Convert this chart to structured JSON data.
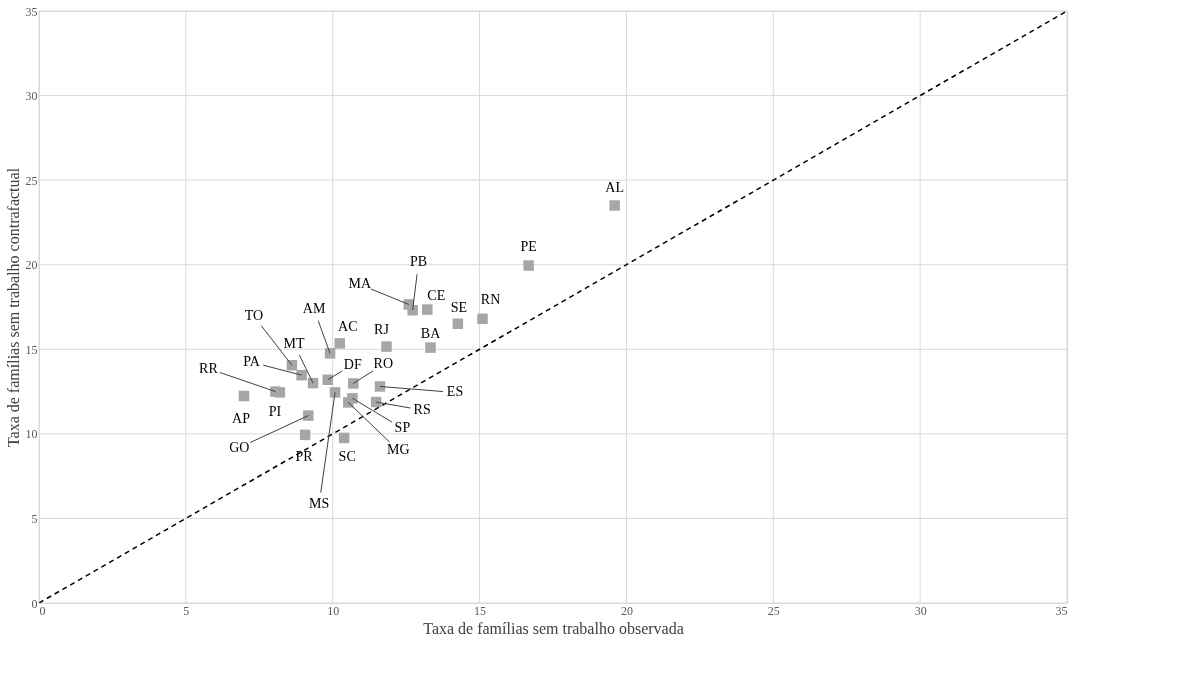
{
  "chart_data": {
    "type": "scatter",
    "xlabel": "Taxa de famílias sem trabalho observada",
    "ylabel": "Taxa de famílias sem trabalho contrafactual",
    "xlim": [
      0,
      35
    ],
    "ylim": [
      0,
      35
    ],
    "xticks": [
      0,
      5,
      10,
      15,
      20,
      25,
      30,
      35
    ],
    "yticks": [
      0,
      5,
      10,
      15,
      20,
      25,
      30,
      35
    ],
    "grid": true,
    "series": [
      {
        "marker": "square",
        "color": "#a6a6a6",
        "x": [
          12.59,
          12.72,
          13.22,
          14.26,
          15.1,
          13.33,
          11.83,
          10.24,
          9.91,
          8.61,
          8.94,
          9.33,
          9.83,
          10.7,
          10.08,
          8.05,
          8.2,
          6.98,
          11.61,
          11.48,
          10.67,
          10.53,
          9.17,
          9.06,
          10.39,
          19.6,
          16.67
        ],
        "values": [
          17.65,
          17.31,
          17.35,
          16.51,
          16.8,
          15.1,
          15.16,
          15.35,
          14.76,
          14.06,
          13.47,
          13.0,
          13.2,
          12.98,
          12.45,
          12.5,
          12.45,
          12.24,
          12.8,
          11.88,
          12.1,
          11.86,
          11.08,
          9.94,
          9.76,
          23.5,
          19.95
        ]
      },
      {
        "type": "line",
        "line_style": "dashed",
        "marker": "none",
        "color": "#000000",
        "x": [
          0,
          35
        ],
        "values": [
          0,
          35
        ]
      }
    ],
    "annotations": [
      {
        "text": "MA",
        "x": 12.59,
        "y": 17.65
      },
      {
        "text": "PB",
        "x": 12.72,
        "y": 17.31
      },
      {
        "text": "CE",
        "x": 13.22,
        "y": 17.35
      },
      {
        "text": "SE",
        "x": 14.26,
        "y": 16.51
      },
      {
        "text": "RN",
        "x": 15.1,
        "y": 16.8
      },
      {
        "text": "BA",
        "x": 13.33,
        "y": 15.1
      },
      {
        "text": "RJ",
        "x": 11.83,
        "y": 15.16
      },
      {
        "text": "AC",
        "x": 10.24,
        "y": 15.35
      },
      {
        "text": "AM",
        "x": 9.91,
        "y": 14.76
      },
      {
        "text": "TO",
        "x": 8.61,
        "y": 14.06
      },
      {
        "text": "PA",
        "x": 8.94,
        "y": 13.47
      },
      {
        "text": "MT",
        "x": 9.33,
        "y": 13.0
      },
      {
        "text": "DF",
        "x": 9.83,
        "y": 13.2
      },
      {
        "text": "RO",
        "x": 10.7,
        "y": 12.98
      },
      {
        "text": "MS",
        "x": 10.08,
        "y": 12.45
      },
      {
        "text": "RR",
        "x": 8.05,
        "y": 12.5
      },
      {
        "text": "PI",
        "x": 8.2,
        "y": 12.45
      },
      {
        "text": "AP",
        "x": 6.98,
        "y": 12.24
      },
      {
        "text": "ES",
        "x": 11.61,
        "y": 12.8
      },
      {
        "text": "RS",
        "x": 11.48,
        "y": 11.88
      },
      {
        "text": "SP",
        "x": 10.67,
        "y": 12.1
      },
      {
        "text": "MG",
        "x": 10.53,
        "y": 11.86
      },
      {
        "text": "GO",
        "x": 9.17,
        "y": 11.08
      },
      {
        "text": "PR",
        "x": 9.06,
        "y": 9.94
      },
      {
        "text": "SC",
        "x": 10.39,
        "y": 9.76
      },
      {
        "text": "AL",
        "x": 19.6,
        "y": 23.5
      },
      {
        "text": "PE",
        "x": 16.67,
        "y": 19.95
      }
    ]
  }
}
